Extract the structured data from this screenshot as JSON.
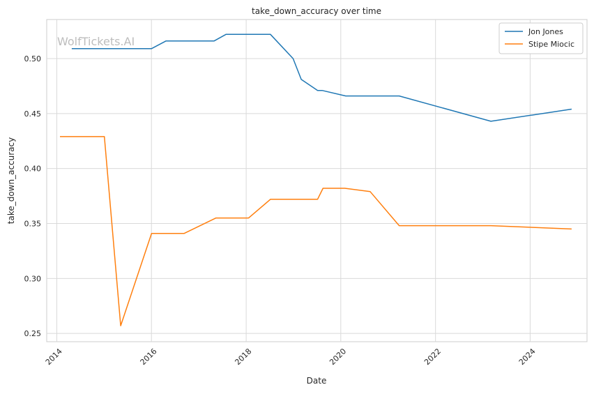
{
  "chart_data": {
    "type": "line",
    "title": "take_down_accuracy over time",
    "xlabel": "Date",
    "ylabel": "take_down_accuracy",
    "watermark": "WolfTickets.AI",
    "x_ticks": [
      "2014",
      "2016",
      "2018",
      "2020",
      "2022",
      "2024"
    ],
    "y_ticks": [
      "0.25",
      "0.30",
      "0.35",
      "0.40",
      "0.45",
      "0.50"
    ],
    "xlim": [
      "2013-10-15",
      "2025-03-15"
    ],
    "ylim": [
      0.2425,
      0.5355
    ],
    "grid": true,
    "legend_position": "top-right",
    "series": [
      {
        "name": "Jon Jones",
        "color": "#1f77b4",
        "points": [
          [
            "2014-04-26",
            0.509
          ],
          [
            "2016-01-01",
            0.509
          ],
          [
            "2016-04-23",
            0.516
          ],
          [
            "2017-04-29",
            0.516
          ],
          [
            "2017-07-29",
            0.522
          ],
          [
            "2018-07-07",
            0.522
          ],
          [
            "2018-12-29",
            0.5
          ],
          [
            "2019-03-02",
            0.481
          ],
          [
            "2019-07-06",
            0.471
          ],
          [
            "2019-08-10",
            0.471
          ],
          [
            "2020-02-08",
            0.466
          ],
          [
            "2021-03-27",
            0.466
          ],
          [
            "2023-03-04",
            0.443
          ],
          [
            "2024-11-16",
            0.454
          ]
        ]
      },
      {
        "name": "Stipe Miocic",
        "color": "#ff7f0e",
        "points": [
          [
            "2014-01-25",
            0.429
          ],
          [
            "2015-01-03",
            0.429
          ],
          [
            "2015-05-09",
            0.257
          ],
          [
            "2016-01-02",
            0.341
          ],
          [
            "2016-09-10",
            0.341
          ],
          [
            "2017-05-13",
            0.355
          ],
          [
            "2018-01-20",
            0.355
          ],
          [
            "2018-07-07",
            0.372
          ],
          [
            "2019-07-06",
            0.372
          ],
          [
            "2019-08-17",
            0.382
          ],
          [
            "2020-02-01",
            0.382
          ],
          [
            "2020-08-15",
            0.379
          ],
          [
            "2021-03-27",
            0.348
          ],
          [
            "2023-03-04",
            0.348
          ],
          [
            "2024-11-16",
            0.345
          ]
        ]
      }
    ]
  }
}
